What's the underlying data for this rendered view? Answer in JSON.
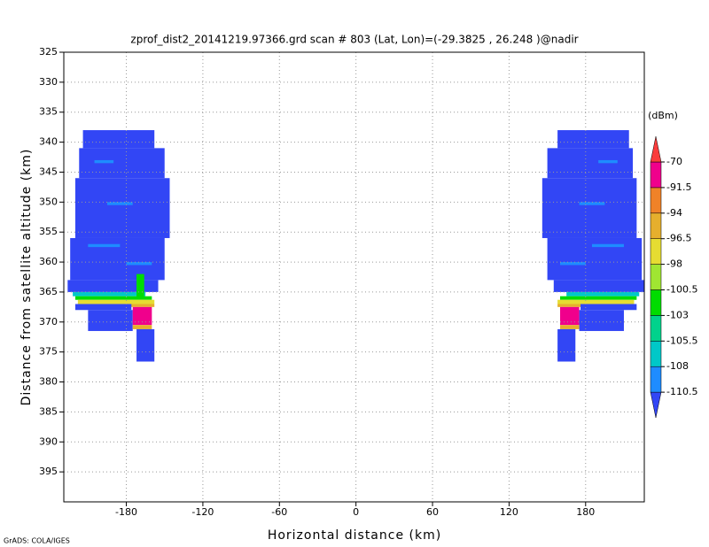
{
  "chart_data": {
    "type": "heatmap",
    "title": "zprof_dist2_20141219.97366.grd  scan # 803  (Lat, Lon)=(-29.3825 , 26.248 )@nadir",
    "xlabel": "Horizontal distance (km)",
    "ylabel": "Distance from satellite altitude (km)",
    "footer": "GrADS: COLA/IGES",
    "xlim": [
      -229,
      226
    ],
    "xticks": [
      -180,
      -120,
      -60,
      0,
      60,
      120,
      180
    ],
    "ylim": [
      400,
      325
    ],
    "yticks": [
      325,
      330,
      335,
      340,
      345,
      350,
      355,
      360,
      365,
      370,
      375,
      380,
      385,
      390,
      395
    ],
    "grid": true,
    "colorbar": {
      "label": "(dBm)",
      "levels": [
        -110.5,
        -108,
        -105.5,
        -103,
        -100.5,
        -98,
        -96.5,
        -94,
        -91.5,
        -70
      ],
      "colors": [
        "#3246f5",
        "#1e8cff",
        "#00c8c8",
        "#00d28c",
        "#00dc00",
        "#a0e632",
        "#e6dc32",
        "#e6af2d",
        "#f08228",
        "#f0008c",
        "#fa3c3c"
      ]
    },
    "cells": [
      [
        -214,
        -158,
        338,
        341,
        -112
      ],
      [
        -217,
        -150,
        341,
        346,
        -112
      ],
      [
        -220,
        -146,
        346,
        356,
        -112
      ],
      [
        -224,
        -150,
        356,
        363,
        -112
      ],
      [
        -226,
        -155,
        363,
        365,
        -112
      ],
      [
        -205,
        -190,
        343,
        343.5,
        -109
      ],
      [
        -195,
        -175,
        350,
        350.5,
        -109
      ],
      [
        -210,
        -185,
        357,
        357.5,
        -109
      ],
      [
        -180,
        -160,
        360,
        360.5,
        -109
      ],
      [
        -222,
        -165,
        365,
        365.7,
        -107
      ],
      [
        -220,
        -160,
        365.7,
        366.3,
        -102
      ],
      [
        -218,
        -158,
        366.3,
        367,
        -97
      ],
      [
        -190,
        -158,
        367,
        367.5,
        -95
      ],
      [
        -172,
        -166,
        362,
        366,
        -102
      ],
      [
        -220,
        -176,
        367,
        368,
        -112
      ],
      [
        -210,
        -175,
        368,
        371.5,
        -112
      ],
      [
        -175,
        -160,
        367.5,
        370.5,
        -80
      ],
      [
        -175,
        -160,
        370.5,
        371.2,
        -95
      ],
      [
        -172,
        -158,
        371.2,
        376.6,
        -112
      ],
      [
        158,
        214,
        338,
        341,
        -112
      ],
      [
        150,
        217,
        341,
        346,
        -112
      ],
      [
        146,
        220,
        346,
        356,
        -112
      ],
      [
        150,
        224,
        356,
        363,
        -112
      ],
      [
        155,
        226,
        363,
        365,
        -112
      ],
      [
        190,
        205,
        343,
        343.5,
        -109
      ],
      [
        175,
        195,
        350,
        350.5,
        -109
      ],
      [
        185,
        210,
        357,
        357.5,
        -109
      ],
      [
        160,
        180,
        360,
        360.5,
        -109
      ],
      [
        165,
        222,
        365,
        365.7,
        -107
      ],
      [
        160,
        220,
        365.7,
        366.3,
        -102
      ],
      [
        158,
        218,
        366.3,
        367,
        -97
      ],
      [
        158,
        190,
        367,
        367.5,
        -95
      ],
      [
        176,
        220,
        367,
        368,
        -112
      ],
      [
        175,
        210,
        368,
        371.5,
        -112
      ],
      [
        160,
        175,
        367.5,
        370.5,
        -80
      ],
      [
        160,
        175,
        370.5,
        371.2,
        -95
      ],
      [
        158,
        172,
        371.2,
        376.6,
        -112
      ]
    ]
  }
}
